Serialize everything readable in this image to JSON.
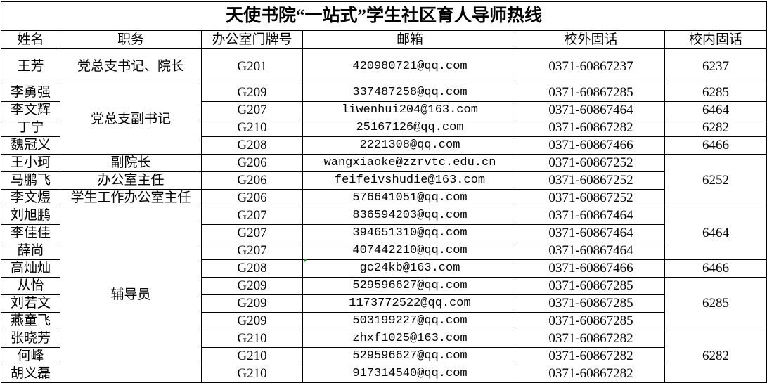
{
  "title": "天使书院“一站式”学生社区育人导师热线",
  "headers": [
    "姓名",
    "职务",
    "办公室门牌号",
    "邮箱",
    "校外固话",
    "校内固话"
  ],
  "rows": [
    {
      "name": "王芳",
      "office": "G201",
      "email": "420980721@qq.com",
      "ext": "0371-60867237"
    },
    {
      "name": "李勇强",
      "office": "G209",
      "email": "337487258@qq.com",
      "ext": "0371-60867285"
    },
    {
      "name": "李文辉",
      "office": "G207",
      "email": "liwenhui204@163.com",
      "ext": "0371-60867464"
    },
    {
      "name": "丁宁",
      "office": "G210",
      "email": "25167126@qq.com",
      "ext": "0371-60867282"
    },
    {
      "name": "魏冠义",
      "office": "G208",
      "email": "2221308@qq.com",
      "ext": "0371-60867466"
    },
    {
      "name": "王小珂",
      "office": "G206",
      "email": "wangxiaoke@zzrvtc.edu.cn",
      "ext": "0371-60867252"
    },
    {
      "name": "马鹏飞",
      "office": "G206",
      "email": "feifeivshudie@163.com",
      "ext": "0371-60867252"
    },
    {
      "name": "李文煜",
      "office": "G206",
      "email": "576641051@qq.com",
      "ext": "0371-60867252"
    },
    {
      "name": "刘旭鹏",
      "office": "G207",
      "email": "836594203@qq.com",
      "ext": "0371-60867464"
    },
    {
      "name": "李佳佳",
      "office": "G207",
      "email": "394651310@qq.com",
      "ext": "0371-60867464"
    },
    {
      "name": "薛尚",
      "office": "G207",
      "email": "407442210@qq.com",
      "ext": "0371-60867464"
    },
    {
      "name": "高灿灿",
      "office": "G208",
      "email": "gc24kb@163.com",
      "ext": "0371-60867466"
    },
    {
      "name": "从怡",
      "office": "G209",
      "email": "529596627@qq.com",
      "ext": "0371-60867285"
    },
    {
      "name": "刘若文",
      "office": "G209",
      "email": "1173772522@qq.com",
      "ext": "0371-60867285"
    },
    {
      "name": "燕童飞",
      "office": "G209",
      "email": "503199227@qq.com",
      "ext": "0371-60867285"
    },
    {
      "name": "张晓芳",
      "office": "G210",
      "email": "zhxf1025@163.com",
      "ext": "0371-60867282"
    },
    {
      "name": "何峰",
      "office": "G210",
      "email": "529596627@qq.com",
      "ext": "0371-60867282"
    },
    {
      "name": "胡义磊",
      "office": "G210",
      "email": "917314540@qq.com",
      "ext": "0371-60867282"
    }
  ],
  "roles": [
    {
      "label": "党总支书记、院长",
      "span": 1
    },
    {
      "label": "党总支副书记",
      "span": 4
    },
    {
      "label": "副院长",
      "span": 1
    },
    {
      "label": "办公室主任",
      "span": 1
    },
    {
      "label": "学生工作办公室主任",
      "span": 1
    },
    {
      "label": "辅导员",
      "span": 10
    }
  ],
  "internal": [
    {
      "label": "6237",
      "span": 1
    },
    {
      "label": "6285",
      "span": 1
    },
    {
      "label": "6464",
      "span": 1
    },
    {
      "label": "6282",
      "span": 1
    },
    {
      "label": "6466",
      "span": 1
    },
    {
      "label": "6252",
      "span": 3
    },
    {
      "label": "6464",
      "span": 3
    },
    {
      "label": "6466",
      "span": 1
    },
    {
      "label": "6285",
      "span": 3
    },
    {
      "label": "6282",
      "span": 3
    }
  ]
}
